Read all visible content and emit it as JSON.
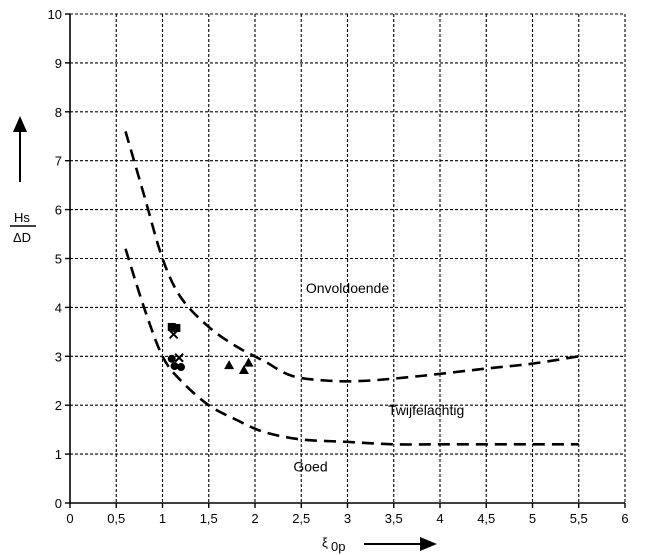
{
  "chart_data": {
    "type": "scatter",
    "title": "",
    "xlabel": "ξ",
    "xlabel_sub": "0p",
    "ylabel_num": "Hs",
    "ylabel_den": "ΔD",
    "xlim": [
      0,
      6
    ],
    "ylim": [
      0,
      10
    ],
    "grid": true,
    "x_ticks": [
      {
        "value": 0,
        "label": "0"
      },
      {
        "value": 0.5,
        "label": "0,5"
      },
      {
        "value": 1,
        "label": "1"
      },
      {
        "value": 1.5,
        "label": "1,5"
      },
      {
        "value": 2,
        "label": "2"
      },
      {
        "value": 2.5,
        "label": "2,5"
      },
      {
        "value": 3,
        "label": "3"
      },
      {
        "value": 3.5,
        "label": "3,5"
      },
      {
        "value": 4,
        "label": "4"
      },
      {
        "value": 4.5,
        "label": "4,5"
      },
      {
        "value": 5,
        "label": "5"
      },
      {
        "value": 5.5,
        "label": "5,5"
      },
      {
        "value": 6,
        "label": "6"
      }
    ],
    "y_ticks": [
      {
        "value": 0,
        "label": "0"
      },
      {
        "value": 1,
        "label": "1"
      },
      {
        "value": 2,
        "label": "2"
      },
      {
        "value": 3,
        "label": "3"
      },
      {
        "value": 4,
        "label": "4"
      },
      {
        "value": 5,
        "label": "5"
      },
      {
        "value": 6,
        "label": "6"
      },
      {
        "value": 7,
        "label": "7"
      },
      {
        "value": 8,
        "label": "8"
      },
      {
        "value": 9,
        "label": "9"
      },
      {
        "value": 10,
        "label": "10"
      }
    ],
    "curves": [
      {
        "points": [
          [
            0.6,
            7.6
          ],
          [
            0.8,
            6.3
          ],
          [
            1.0,
            5.0
          ],
          [
            1.2,
            4.2
          ],
          [
            1.5,
            3.6
          ],
          [
            1.8,
            3.2
          ],
          [
            2.1,
            2.9
          ],
          [
            2.4,
            2.6
          ],
          [
            2.8,
            2.5
          ],
          [
            3.2,
            2.5
          ],
          [
            3.8,
            2.6
          ],
          [
            4.5,
            2.75
          ],
          [
            5.0,
            2.85
          ],
          [
            5.5,
            3.0
          ]
        ]
      },
      {
        "points": [
          [
            0.6,
            5.2
          ],
          [
            0.8,
            4.0
          ],
          [
            1.0,
            3.0
          ],
          [
            1.2,
            2.5
          ],
          [
            1.5,
            2.0
          ],
          [
            1.8,
            1.7
          ],
          [
            2.1,
            1.45
          ],
          [
            2.5,
            1.3
          ],
          [
            3.0,
            1.25
          ],
          [
            3.5,
            1.2
          ],
          [
            4.0,
            1.2
          ],
          [
            4.5,
            1.2
          ],
          [
            5.0,
            1.2
          ],
          [
            5.5,
            1.2
          ]
        ]
      }
    ],
    "points": [
      {
        "x": 1.1,
        "y": 3.6,
        "marker": "square"
      },
      {
        "x": 1.15,
        "y": 3.58,
        "marker": "square"
      },
      {
        "x": 1.12,
        "y": 3.45,
        "marker": "cross"
      },
      {
        "x": 1.1,
        "y": 2.95,
        "marker": "circle"
      },
      {
        "x": 1.18,
        "y": 2.97,
        "marker": "cross"
      },
      {
        "x": 1.13,
        "y": 2.8,
        "marker": "circle"
      },
      {
        "x": 1.2,
        "y": 2.78,
        "marker": "circle"
      },
      {
        "x": 1.72,
        "y": 2.82,
        "marker": "triangle"
      },
      {
        "x": 1.88,
        "y": 2.72,
        "marker": "triangle"
      },
      {
        "x": 1.93,
        "y": 2.87,
        "marker": "triangle"
      }
    ],
    "annotations": [
      {
        "text": "Onvoldoende",
        "x": 3.0,
        "y": 4.4
      },
      {
        "text": "Twijfelachtig",
        "x": 3.85,
        "y": 1.9
      },
      {
        "text": "Goed",
        "x": 2.6,
        "y": 0.75
      }
    ]
  }
}
